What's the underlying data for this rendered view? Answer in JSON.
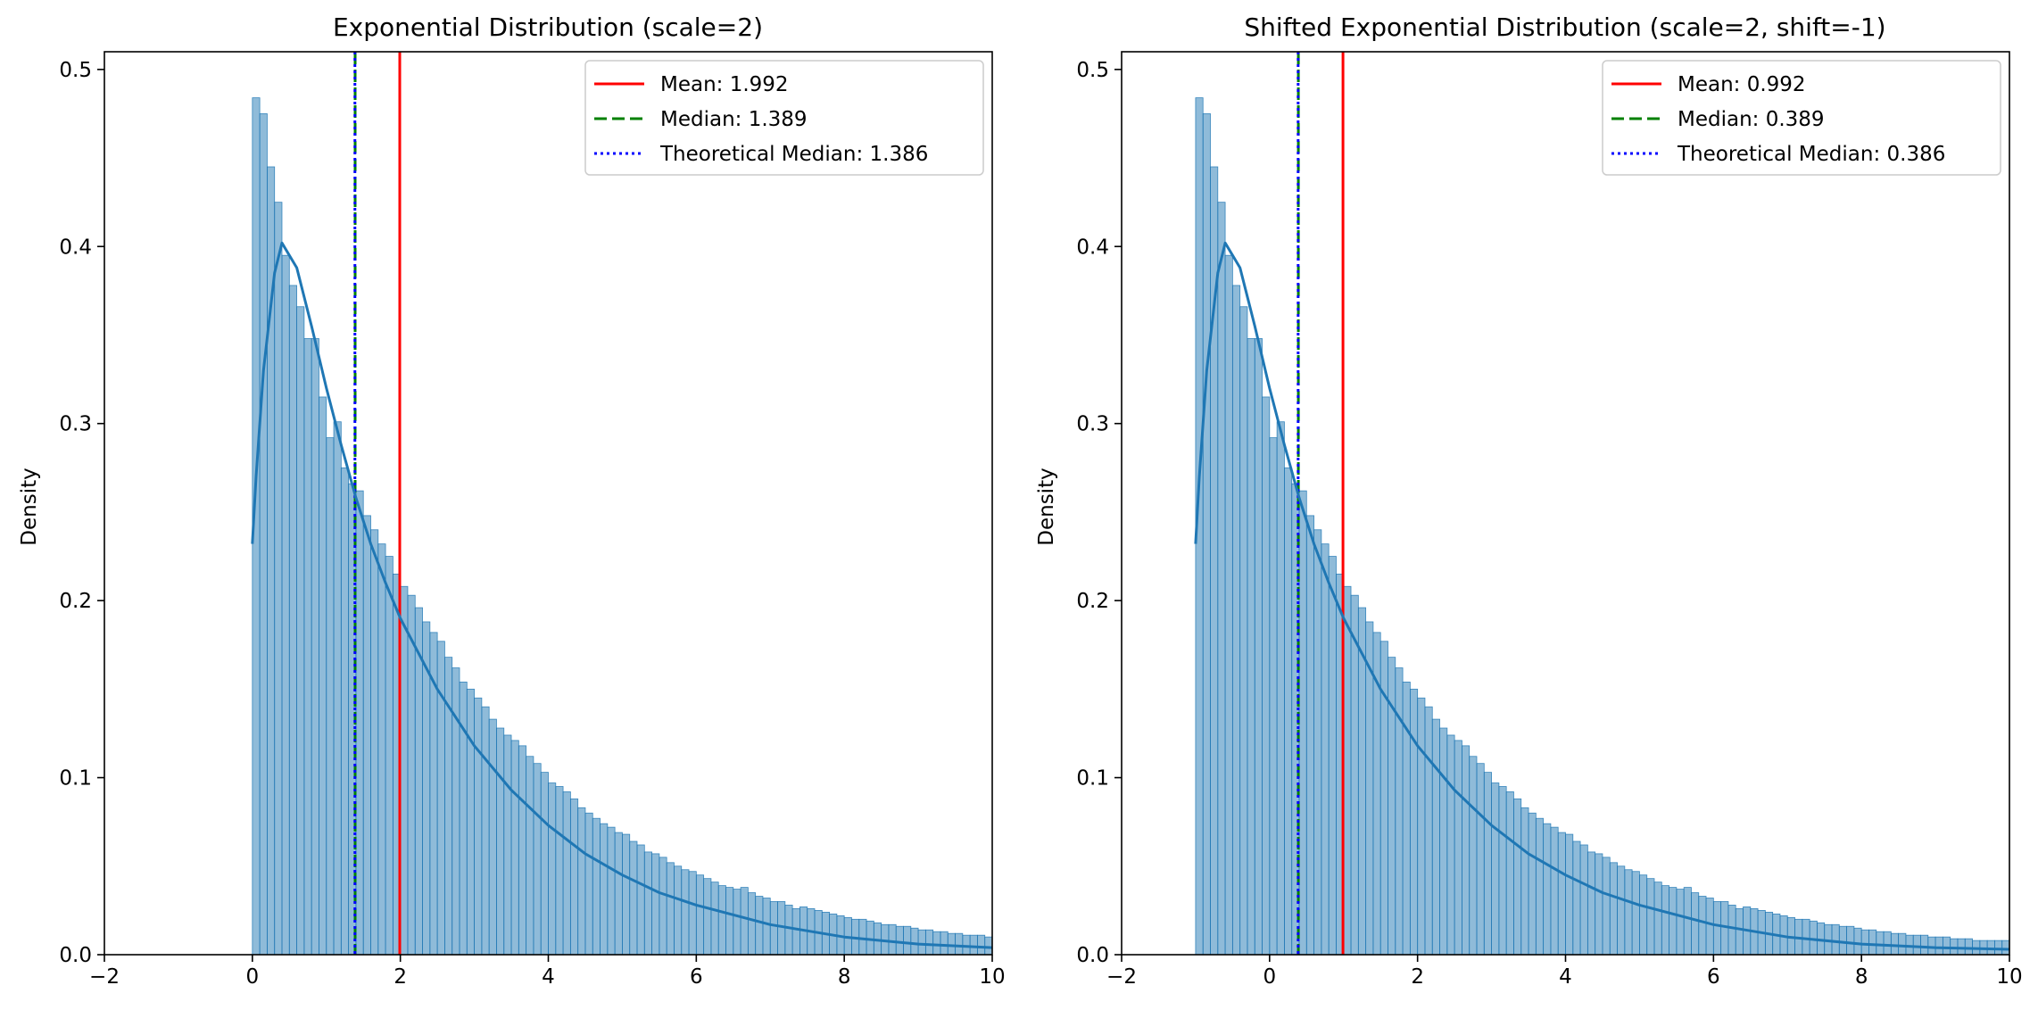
{
  "chart_data": [
    {
      "type": "histogram",
      "title": "Exponential Distribution (scale=2)",
      "xlabel": "",
      "ylabel": "Density",
      "xlim": [
        -2,
        10
      ],
      "ylim": [
        0,
        0.51
      ],
      "xticks": [
        "−2",
        "0",
        "2",
        "4",
        "6",
        "8",
        "10"
      ],
      "xtick_values": [
        -2,
        0,
        2,
        4,
        6,
        8,
        10
      ],
      "yticks": [
        "0.0",
        "0.1",
        "0.2",
        "0.3",
        "0.4",
        "0.5"
      ],
      "ytick_values": [
        0,
        0.1,
        0.2,
        0.3,
        0.4,
        0.5
      ],
      "bin_start": 0,
      "bin_width": 0.1,
      "density": [
        0.484,
        0.475,
        0.445,
        0.425,
        0.395,
        0.378,
        0.366,
        0.348,
        0.348,
        0.315,
        0.292,
        0.301,
        0.275,
        0.266,
        0.262,
        0.248,
        0.24,
        0.232,
        0.225,
        0.215,
        0.208,
        0.203,
        0.196,
        0.188,
        0.182,
        0.177,
        0.168,
        0.162,
        0.154,
        0.15,
        0.145,
        0.14,
        0.133,
        0.128,
        0.124,
        0.121,
        0.118,
        0.112,
        0.108,
        0.103,
        0.097,
        0.095,
        0.092,
        0.088,
        0.083,
        0.08,
        0.077,
        0.074,
        0.072,
        0.069,
        0.068,
        0.064,
        0.062,
        0.058,
        0.057,
        0.055,
        0.052,
        0.05,
        0.048,
        0.047,
        0.045,
        0.043,
        0.041,
        0.039,
        0.038,
        0.037,
        0.038,
        0.035,
        0.033,
        0.032,
        0.03,
        0.03,
        0.028,
        0.026,
        0.027,
        0.026,
        0.025,
        0.024,
        0.023,
        0.022,
        0.021,
        0.02,
        0.02,
        0.019,
        0.018,
        0.017,
        0.017,
        0.016,
        0.016,
        0.015,
        0.014,
        0.014,
        0.013,
        0.013,
        0.012,
        0.012,
        0.011,
        0.011,
        0.011,
        0.01,
        0.01,
        0.01,
        0.009,
        0.009,
        0.009,
        0.008,
        0.008,
        0.008,
        0.008,
        0.008,
        0.007,
        0.007,
        0.007,
        0.007,
        0.006,
        0.006,
        0.006,
        0.006,
        0.006,
        0.005,
        0.005,
        0.005,
        0.005,
        0.005,
        0.005,
        0.004,
        0.004,
        0.004,
        0.004,
        0.004,
        0.004,
        0.004,
        0.004,
        0.003,
        0.003,
        0.003,
        0.003,
        0.003,
        0.003,
        0.003,
        0.003,
        0.003,
        0.003,
        0.003,
        0.002,
        0.002,
        0.002,
        0.002,
        0.002,
        0.002,
        0.002,
        0.002,
        0.002,
        0.002,
        0.002,
        0.002,
        0.002,
        0.002,
        0.002,
        0.002,
        0.002
      ],
      "kde": {
        "x": [
          0.0,
          0.05,
          0.15,
          0.3,
          0.4,
          0.6,
          0.8,
          1.0,
          1.2,
          1.4,
          1.6,
          1.8,
          2.0,
          2.5,
          3.0,
          3.5,
          4.0,
          4.5,
          5.0,
          5.5,
          6.0,
          7.0,
          8.0,
          9.0,
          10.0
        ],
        "y": [
          0.232,
          0.27,
          0.33,
          0.385,
          0.402,
          0.388,
          0.355,
          0.32,
          0.288,
          0.258,
          0.232,
          0.21,
          0.19,
          0.15,
          0.118,
          0.093,
          0.073,
          0.057,
          0.045,
          0.035,
          0.028,
          0.017,
          0.01,
          0.006,
          0.004
        ]
      },
      "vlines": [
        {
          "name": "Mean: 1.992",
          "x": 1.992,
          "color": "#ff0000",
          "style": "solid"
        },
        {
          "name": "Median: 1.389",
          "x": 1.389,
          "color": "#008000",
          "style": "dashed"
        },
        {
          "name": "Theoretical Median: 1.386",
          "x": 1.386,
          "color": "#0000ff",
          "style": "dotted"
        }
      ],
      "legend": "top-right",
      "grid": false,
      "colors": {
        "bars": "#1f77b4",
        "kde": "#1f77b4"
      }
    },
    {
      "type": "histogram",
      "title": "Shifted Exponential Distribution (scale=2, shift=-1)",
      "xlabel": "",
      "ylabel": "Density",
      "xlim": [
        -2,
        10
      ],
      "ylim": [
        0,
        0.51
      ],
      "xticks": [
        "−2",
        "0",
        "2",
        "4",
        "6",
        "8",
        "10"
      ],
      "xtick_values": [
        -2,
        0,
        2,
        4,
        6,
        8,
        10
      ],
      "yticks": [
        "0.0",
        "0.1",
        "0.2",
        "0.3",
        "0.4",
        "0.5"
      ],
      "ytick_values": [
        0,
        0.1,
        0.2,
        0.3,
        0.4,
        0.5
      ],
      "bin_start": -1,
      "bin_width": 0.1,
      "density": [
        0.484,
        0.475,
        0.445,
        0.425,
        0.395,
        0.378,
        0.366,
        0.348,
        0.348,
        0.315,
        0.292,
        0.301,
        0.275,
        0.266,
        0.262,
        0.248,
        0.24,
        0.232,
        0.225,
        0.215,
        0.208,
        0.203,
        0.196,
        0.188,
        0.182,
        0.177,
        0.168,
        0.162,
        0.154,
        0.15,
        0.145,
        0.14,
        0.133,
        0.128,
        0.124,
        0.121,
        0.118,
        0.112,
        0.108,
        0.103,
        0.097,
        0.095,
        0.092,
        0.088,
        0.083,
        0.08,
        0.077,
        0.074,
        0.072,
        0.069,
        0.068,
        0.064,
        0.062,
        0.058,
        0.057,
        0.055,
        0.052,
        0.05,
        0.048,
        0.047,
        0.045,
        0.043,
        0.041,
        0.039,
        0.038,
        0.037,
        0.038,
        0.035,
        0.033,
        0.032,
        0.03,
        0.03,
        0.028,
        0.026,
        0.027,
        0.026,
        0.025,
        0.024,
        0.023,
        0.022,
        0.021,
        0.02,
        0.02,
        0.019,
        0.018,
        0.017,
        0.017,
        0.016,
        0.016,
        0.015,
        0.014,
        0.014,
        0.013,
        0.013,
        0.012,
        0.012,
        0.011,
        0.011,
        0.011,
        0.01,
        0.01,
        0.01,
        0.009,
        0.009,
        0.009,
        0.008,
        0.008,
        0.008,
        0.008,
        0.008,
        0.007,
        0.007,
        0.007,
        0.007,
        0.006,
        0.006,
        0.006,
        0.006,
        0.006,
        0.005,
        0.005,
        0.005,
        0.005,
        0.005,
        0.005,
        0.004,
        0.004,
        0.004,
        0.004,
        0.004,
        0.004,
        0.004,
        0.004,
        0.003,
        0.003,
        0.003,
        0.003,
        0.003,
        0.003,
        0.003,
        0.003,
        0.003,
        0.003,
        0.003,
        0.002,
        0.002,
        0.002,
        0.002,
        0.002,
        0.002,
        0.002,
        0.002,
        0.002,
        0.002,
        0.002,
        0.002,
        0.002,
        0.002,
        0.002,
        0.002,
        0.002,
        0.002,
        0.002,
        0.002
      ],
      "kde": {
        "x": [
          -1.0,
          -0.95,
          -0.85,
          -0.7,
          -0.6,
          -0.4,
          -0.2,
          0.0,
          0.2,
          0.4,
          0.6,
          0.8,
          1.0,
          1.5,
          2.0,
          2.5,
          3.0,
          3.5,
          4.0,
          4.5,
          5.0,
          6.0,
          7.0,
          8.0,
          9.0,
          10.0
        ],
        "y": [
          0.232,
          0.27,
          0.33,
          0.385,
          0.402,
          0.388,
          0.355,
          0.32,
          0.288,
          0.258,
          0.232,
          0.21,
          0.19,
          0.15,
          0.118,
          0.093,
          0.073,
          0.057,
          0.045,
          0.035,
          0.028,
          0.017,
          0.01,
          0.006,
          0.004,
          0.003
        ]
      },
      "vlines": [
        {
          "name": "Mean: 0.992",
          "x": 0.992,
          "color": "#ff0000",
          "style": "solid"
        },
        {
          "name": "Median: 0.389",
          "x": 0.389,
          "color": "#008000",
          "style": "dashed"
        },
        {
          "name": "Theoretical Median: 0.386",
          "x": 0.386,
          "color": "#0000ff",
          "style": "dotted"
        }
      ],
      "legend": "top-right",
      "grid": false,
      "colors": {
        "bars": "#1f77b4",
        "kde": "#1f77b4"
      }
    }
  ]
}
